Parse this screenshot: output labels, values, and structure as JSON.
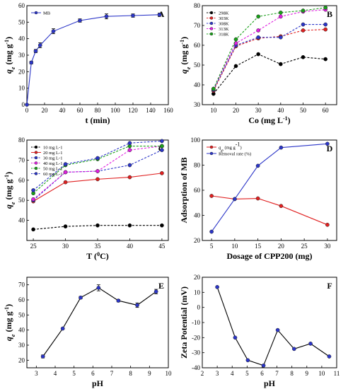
{
  "chart_data": [
    {
      "panel": "A",
      "type": "line",
      "xlabel": "t (min)",
      "ylabel": "qe (mg g-1)",
      "xlim": [
        0,
        160
      ],
      "ylim": [
        0,
        60
      ],
      "xticks": [
        "0",
        "20",
        "40",
        "60",
        "80",
        "100",
        "120",
        "140",
        "160"
      ],
      "yticks": [
        "0",
        "10",
        "20",
        "30",
        "40",
        "50",
        "60"
      ],
      "legend": "top-left",
      "series": [
        {
          "name": "MB",
          "color": "#2b35c8",
          "dash": false,
          "marker": "circle",
          "x": [
            0,
            5,
            10,
            15,
            30,
            60,
            90,
            120,
            150
          ],
          "y": [
            0,
            25.5,
            32.5,
            36,
            44.5,
            51,
            53.5,
            54,
            54.5
          ],
          "err": [
            0,
            0.8,
            1.0,
            1.5,
            1.5,
            1.0,
            1.5,
            1.0,
            1.0
          ]
        }
      ]
    },
    {
      "panel": "B",
      "type": "line",
      "xlabel": "Co (mg L-1)",
      "ylabel": "qe (mg g-1)",
      "xlim": [
        5,
        65
      ],
      "ylim": [
        30,
        80
      ],
      "xticks": [
        "10",
        "20",
        "30",
        "40",
        "50",
        "60"
      ],
      "yticks": [
        "30",
        "40",
        "50",
        "60",
        "70",
        "80"
      ],
      "legend": "top-left",
      "series": [
        {
          "name": "298K",
          "color": "#000000",
          "dash": true,
          "marker": "circle",
          "x": [
            10,
            20,
            30,
            40,
            50,
            60
          ],
          "y": [
            35.5,
            49.5,
            55.5,
            50.5,
            54,
            53
          ]
        },
        {
          "name": "303K",
          "color": "#e02020",
          "dash": true,
          "marker": "circle",
          "x": [
            10,
            20,
            30,
            40,
            50,
            60
          ],
          "y": [
            37,
            59.5,
            63.5,
            64.5,
            67.5,
            68
          ]
        },
        {
          "name": "308K",
          "color": "#2b35c8",
          "dash": true,
          "marker": "circle",
          "x": [
            10,
            20,
            30,
            40,
            50,
            60
          ],
          "y": [
            37.5,
            60,
            64,
            64,
            70.5,
            70.5
          ]
        },
        {
          "name": "313K",
          "color": "#e020e0",
          "dash": true,
          "marker": "circle",
          "x": [
            10,
            20,
            30,
            40,
            50,
            60
          ],
          "y": [
            38,
            61,
            67.5,
            74.5,
            77,
            78
          ]
        },
        {
          "name": "318K",
          "color": "#1aa01a",
          "dash": true,
          "marker": "circle",
          "x": [
            10,
            20,
            30,
            40,
            50,
            60
          ],
          "y": [
            38,
            63,
            74.5,
            76.5,
            77.5,
            79
          ]
        }
      ]
    },
    {
      "panel": "C",
      "type": "line",
      "xlabel": "T (0C)",
      "ylabel": "qe (mg g-1)",
      "xlim": [
        24,
        46
      ],
      "ylim": [
        30,
        80
      ],
      "xticks": [
        "25",
        "30",
        "35",
        "40",
        "45"
      ],
      "yticks": [
        "40",
        "50",
        "60",
        "70",
        "80"
      ],
      "legend": "top-left",
      "series": [
        {
          "name": "10 mg L-1",
          "color": "#000000",
          "dash": true,
          "marker": "circle",
          "x": [
            25,
            30,
            35,
            40,
            45
          ],
          "y": [
            35.5,
            37,
            37.5,
            37.5,
            37.5
          ]
        },
        {
          "name": "20 mg L-1",
          "color": "#e02020",
          "dash": false,
          "marker": "circle",
          "x": [
            25,
            30,
            35,
            40,
            45
          ],
          "y": [
            49.5,
            59,
            60.5,
            61.5,
            63.5
          ]
        },
        {
          "name": "30 mg L-1",
          "color": "#2b35c8",
          "dash": true,
          "marker": "circle",
          "x": [
            25,
            30,
            35,
            40,
            45
          ],
          "y": [
            50,
            64,
            64.5,
            67.5,
            75
          ]
        },
        {
          "name": "40 mg L-1",
          "color": "#e020e0",
          "dash": true,
          "marker": "circle",
          "x": [
            25,
            30,
            35,
            40,
            45
          ],
          "y": [
            50.5,
            64,
            64.5,
            75,
            77
          ]
        },
        {
          "name": "50 mg L-1",
          "color": "#1aa01a",
          "dash": true,
          "marker": "circle",
          "x": [
            25,
            30,
            35,
            40,
            45
          ],
          "y": [
            53.5,
            67.5,
            70.5,
            77,
            77
          ]
        },
        {
          "name": "60 mg L-1",
          "color": "#2b35c8",
          "dash": true,
          "marker": "circle",
          "x": [
            25,
            30,
            35,
            40,
            45
          ],
          "y": [
            55,
            68,
            71,
            78.5,
            79.5
          ]
        }
      ]
    },
    {
      "panel": "D",
      "type": "line",
      "xlabel": "Dosage of CPP200 (mg)",
      "ylabel": "Adsorption of MB",
      "xlim": [
        3,
        32
      ],
      "ylim": [
        20,
        100
      ],
      "xticks": [
        "5",
        "10",
        "15",
        "20",
        "25",
        "30"
      ],
      "yticks": [
        "20",
        "40",
        "60",
        "80",
        "100"
      ],
      "legend": "top-left",
      "series": [
        {
          "name": "qe (mg g-1)",
          "color": "#e02020",
          "dash": false,
          "marker": "circle",
          "x": [
            5,
            10,
            15,
            20,
            30
          ],
          "y": [
            55.5,
            53,
            53.5,
            47.5,
            32.5
          ]
        },
        {
          "name": "Removal rate (%)",
          "color": "#2b35c8",
          "dash": false,
          "marker": "circle",
          "x": [
            5,
            10,
            15,
            20,
            30
          ],
          "y": [
            27,
            53,
            79.5,
            94,
            97
          ]
        }
      ]
    },
    {
      "panel": "E",
      "type": "line",
      "xlabel": "pH",
      "ylabel": "qe (mg g-1)",
      "xlim": [
        2.5,
        10
      ],
      "ylim": [
        15,
        75
      ],
      "xticks": [
        "3",
        "4",
        "5",
        "6",
        "7",
        "8",
        "9",
        "10"
      ],
      "yticks": [
        "20",
        "30",
        "40",
        "50",
        "60",
        "70"
      ],
      "legend": "none",
      "series": [
        {
          "name": "",
          "color": "#000000",
          "dash": false,
          "marker": "circle",
          "markerColor": "#2b35c8",
          "x": [
            3.35,
            4.4,
            5.35,
            6.3,
            7.35,
            8.35,
            9.35
          ],
          "y": [
            22.5,
            41,
            61.5,
            68,
            59.5,
            56.5,
            65.5
          ],
          "err": [
            1.0,
            0.5,
            0.8,
            2.0,
            0.8,
            1.5,
            1.5
          ]
        }
      ]
    },
    {
      "panel": "F",
      "type": "line",
      "xlabel": "pH",
      "ylabel": "Zeta Potential (mV)",
      "xlim": [
        2,
        11
      ],
      "ylim": [
        -40,
        20
      ],
      "xticks": [
        "2",
        "3",
        "4",
        "5",
        "6",
        "7",
        "8",
        "9",
        "10",
        "11"
      ],
      "yticks": [
        "-40",
        "-30",
        "-20",
        "-10",
        "0",
        "10",
        "20"
      ],
      "legend": "none",
      "series": [
        {
          "name": "",
          "color": "#000000",
          "dash": false,
          "marker": "circle",
          "markerColor": "#2b35c8",
          "x": [
            3.0,
            4.2,
            5.05,
            6.1,
            7.05,
            8.15,
            9.25,
            10.5
          ],
          "y": [
            13.5,
            -20,
            -35,
            -38.5,
            -15,
            -27.5,
            -24,
            -32.5
          ]
        }
      ]
    }
  ]
}
